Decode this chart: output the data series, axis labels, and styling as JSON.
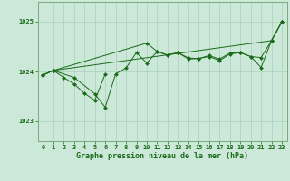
{
  "x": [
    0,
    1,
    2,
    3,
    4,
    5,
    6,
    7,
    8,
    9,
    10,
    11,
    12,
    13,
    14,
    15,
    16,
    17,
    18,
    19,
    20,
    21,
    22,
    23
  ],
  "series1": [
    1023.93,
    1024.02,
    1023.88,
    1023.75,
    1023.56,
    1023.42,
    1023.95,
    null,
    null,
    null,
    null,
    null,
    null,
    null,
    null,
    null,
    null,
    null,
    null,
    null,
    null,
    null,
    null,
    null
  ],
  "series2": [
    1023.93,
    1024.02,
    null,
    1023.88,
    null,
    1023.55,
    1023.28,
    1023.95,
    1024.07,
    1024.38,
    1024.17,
    1024.4,
    1024.33,
    1024.38,
    1024.27,
    1024.26,
    1024.3,
    1024.22,
    1024.35,
    1024.38,
    1024.3,
    1024.08,
    1024.62,
    1025.0
  ],
  "series3": [
    1023.93,
    1024.02,
    null,
    null,
    null,
    null,
    null,
    null,
    null,
    null,
    1024.57,
    1024.4,
    1024.33,
    1024.38,
    1024.25,
    1024.26,
    1024.32,
    1024.25,
    1024.37,
    1024.38,
    1024.3,
    1024.28,
    1024.62,
    1025.0
  ],
  "series4": [
    1023.93,
    1024.02,
    null,
    null,
    null,
    null,
    null,
    null,
    null,
    null,
    null,
    null,
    null,
    null,
    null,
    null,
    null,
    null,
    null,
    null,
    null,
    null,
    1024.62,
    1025.0
  ],
  "bg_color": "#cce8d8",
  "line_color": "#1a6b1a",
  "grid_color": "#aacfba",
  "axis_color": "#7aaa7a",
  "ylabel_ticks": [
    1023,
    1024,
    1025
  ],
  "xlim": [
    -0.5,
    23.5
  ],
  "ylim": [
    1022.6,
    1025.4
  ],
  "xlabel": "Graphe pression niveau de la mer (hPa)",
  "tick_fontsize": 5.0,
  "xlabel_fontsize": 6.0
}
